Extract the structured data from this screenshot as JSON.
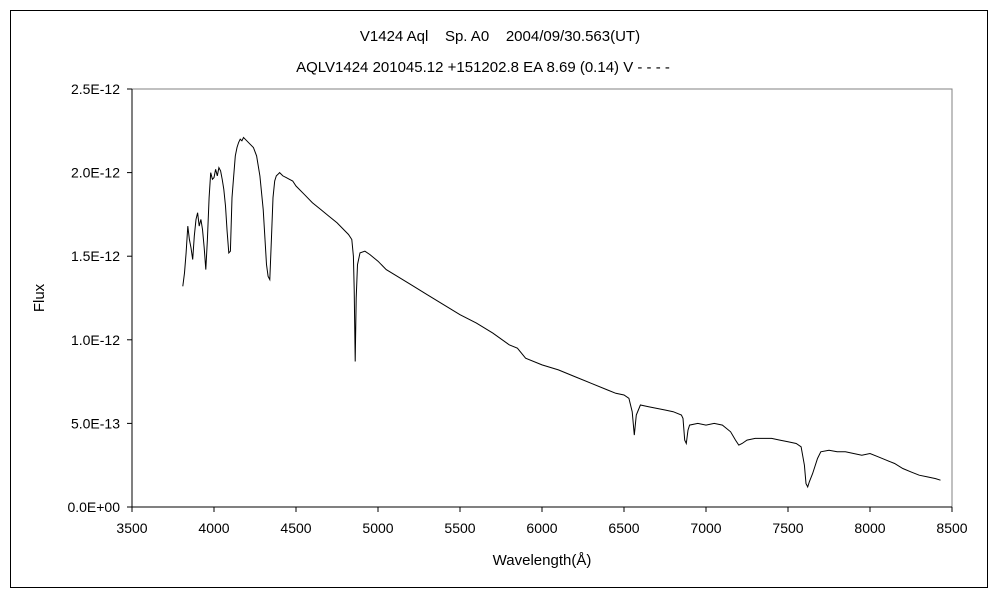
{
  "chart_data": {
    "type": "line",
    "title": "V1424 Aql    Sp. A0    2004/09/30.563(UT)",
    "subtitle": "AQLV1424 201045.12 +151202.8 EA 8.69 (0.14) V - - - -",
    "xlabel": "Wavelength(Å)",
    "ylabel": "Flux",
    "xlim": [
      3500,
      8500
    ],
    "ylim": [
      0,
      2.5e-12
    ],
    "x_ticks": [
      "3500",
      "4000",
      "4500",
      "5000",
      "5500",
      "6000",
      "6500",
      "7000",
      "7500",
      "8000",
      "8500"
    ],
    "y_ticks": [
      "0.0E+00",
      "5.0E-13",
      "1.0E-12",
      "1.5E-12",
      "2.0E-12",
      "2.5E-12"
    ],
    "grid": false,
    "legend": "none",
    "line_color": "#000000",
    "series": [
      {
        "x": [
          3810,
          3820,
          3830,
          3840,
          3850,
          3860,
          3870,
          3880,
          3890,
          3900,
          3910,
          3920,
          3930,
          3940,
          3950,
          3960,
          3970,
          3980,
          3990,
          4000,
          4010,
          4020,
          4030,
          4040,
          4050,
          4060,
          4070,
          4080,
          4090,
          4100,
          4110,
          4120,
          4130,
          4140,
          4150,
          4160,
          4170,
          4180,
          4190,
          4200,
          4220,
          4240,
          4260,
          4280,
          4300,
          4310,
          4320,
          4330,
          4340,
          4350,
          4360,
          4370,
          4380,
          4390,
          4400,
          4420,
          4440,
          4460,
          4480,
          4500,
          4550,
          4600,
          4650,
          4700,
          4750,
          4800,
          4820,
          4840,
          4850,
          4855,
          4861,
          4867,
          4875,
          4890,
          4920,
          4950,
          5000,
          5050,
          5100,
          5200,
          5300,
          5400,
          5500,
          5600,
          5700,
          5800,
          5850,
          5900,
          6000,
          6100,
          6200,
          6300,
          6400,
          6450,
          6500,
          6530,
          6550,
          6563,
          6575,
          6600,
          6650,
          6700,
          6750,
          6800,
          6850,
          6860,
          6870,
          6880,
          6890,
          6900,
          6950,
          7000,
          7050,
          7100,
          7150,
          7180,
          7200,
          7220,
          7250,
          7300,
          7350,
          7400,
          7450,
          7500,
          7550,
          7580,
          7600,
          7610,
          7620,
          7630,
          7650,
          7680,
          7700,
          7750,
          7800,
          7850,
          7900,
          7950,
          8000,
          8050,
          8100,
          8150,
          8200,
          8250,
          8300,
          8350,
          8400,
          8430
        ],
        "y": [
          1.32e-12,
          1.4e-12,
          1.52e-12,
          1.68e-12,
          1.6e-12,
          1.55e-12,
          1.48e-12,
          1.62e-12,
          1.72e-12,
          1.76e-12,
          1.68e-12,
          1.72e-12,
          1.66e-12,
          1.55e-12,
          1.42e-12,
          1.6e-12,
          1.85e-12,
          2e-12,
          1.96e-12,
          1.97e-12,
          2.02e-12,
          1.98e-12,
          2.03e-12,
          2.01e-12,
          1.96e-12,
          1.9e-12,
          1.8e-12,
          1.65e-12,
          1.52e-12,
          1.53e-12,
          1.85e-12,
          1.98e-12,
          2.1e-12,
          2.15e-12,
          2.18e-12,
          2.2e-12,
          2.19e-12,
          2.21e-12,
          2.2e-12,
          2.19e-12,
          2.17e-12,
          2.15e-12,
          2.1e-12,
          1.98e-12,
          1.78e-12,
          1.62e-12,
          1.45e-12,
          1.38e-12,
          1.36e-12,
          1.6e-12,
          1.85e-12,
          1.95e-12,
          1.98e-12,
          1.99e-12,
          2e-12,
          1.98e-12,
          1.97e-12,
          1.96e-12,
          1.95e-12,
          1.92e-12,
          1.87e-12,
          1.82e-12,
          1.78e-12,
          1.74e-12,
          1.7e-12,
          1.65e-12,
          1.63e-12,
          1.6e-12,
          1.5e-12,
          1.3e-12,
          8.7e-13,
          1.25e-12,
          1.45e-12,
          1.52e-12,
          1.53e-12,
          1.51e-12,
          1.47e-12,
          1.42e-12,
          1.39e-12,
          1.33e-12,
          1.27e-12,
          1.21e-12,
          1.15e-12,
          1.1e-12,
          1.04e-12,
          9.7e-13,
          9.5e-13,
          8.9e-13,
          8.5e-13,
          8.2e-13,
          7.8e-13,
          7.4e-13,
          7e-13,
          6.8e-13,
          6.7e-13,
          6.5e-13,
          5.7e-13,
          4.3e-13,
          5.5e-13,
          6.1e-13,
          6e-13,
          5.9e-13,
          5.8e-13,
          5.7e-13,
          5.5e-13,
          5.3e-13,
          4e-13,
          3.8e-13,
          4.6e-13,
          4.9e-13,
          5e-13,
          4.9e-13,
          5e-13,
          4.9e-13,
          4.5e-13,
          4e-13,
          3.7e-13,
          3.8e-13,
          4e-13,
          4.1e-13,
          4.1e-13,
          4.1e-13,
          4e-13,
          3.9e-13,
          3.8e-13,
          3.6e-13,
          2.5e-13,
          1.4e-13,
          1.2e-13,
          1.5e-13,
          2e-13,
          2.9e-13,
          3.3e-13,
          3.4e-13,
          3.3e-13,
          3.3e-13,
          3.2e-13,
          3.1e-13,
          3.2e-13,
          3e-13,
          2.8e-13,
          2.6e-13,
          2.3e-13,
          2.1e-13,
          1.9e-13,
          1.8e-13,
          1.7e-13,
          1.6e-13
        ]
      }
    ]
  }
}
